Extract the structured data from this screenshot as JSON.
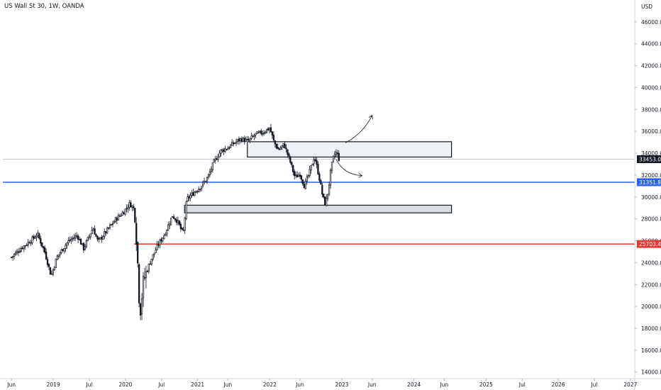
{
  "chart_data": {
    "type": "candlestick",
    "title": "US Wall St 30, 1W, OANDA",
    "currency_label": "USD",
    "y_ticks": [
      14000,
      16000,
      18000,
      20000,
      22000,
      24000,
      26000,
      28000,
      30000,
      32000,
      34000,
      36000,
      38000,
      40000,
      42000,
      44000,
      46000
    ],
    "y_tick_labels": [
      "14000.0",
      "16000.0",
      "18000.0",
      "20000.0",
      "22000.0",
      "24000.0",
      "26000.0",
      "28000.0",
      "30000.0",
      "32000.0",
      "34000.0",
      "36000.0",
      "38000.0",
      "40000.0",
      "42000.0",
      "44000.0",
      "46000.0"
    ],
    "ylim": [
      13400,
      48000
    ],
    "x_ticks": [
      {
        "t": 2018.42,
        "label": "Jun"
      },
      {
        "t": 2019.0,
        "label": "2019"
      },
      {
        "t": 2019.5,
        "label": "Jul"
      },
      {
        "t": 2020.0,
        "label": "2020"
      },
      {
        "t": 2020.5,
        "label": "Jul"
      },
      {
        "t": 2021.0,
        "label": "2021"
      },
      {
        "t": 2021.42,
        "label": "Jun"
      },
      {
        "t": 2022.0,
        "label": "2022"
      },
      {
        "t": 2022.42,
        "label": "Jun"
      },
      {
        "t": 2023.0,
        "label": "2023"
      },
      {
        "t": 2023.42,
        "label": "Jun"
      },
      {
        "t": 2024.0,
        "label": "2024"
      },
      {
        "t": 2024.42,
        "label": "Jun"
      },
      {
        "t": 2025.0,
        "label": "2025"
      },
      {
        "t": 2025.5,
        "label": "Jul"
      },
      {
        "t": 2026.0,
        "label": "2026"
      },
      {
        "t": 2026.5,
        "label": "Jul"
      },
      {
        "t": 2027.0,
        "label": "2027"
      }
    ],
    "xlim": [
      2018.3,
      2027.1
    ],
    "horizontal_lines": [
      {
        "value": 31351.8,
        "label": "31351.8",
        "color": "#2962ff",
        "from": 2018.3
      },
      {
        "value": 25703.4,
        "label": "25703.4",
        "color": "#e53935",
        "from": 2020.12
      },
      {
        "value": 33453.0,
        "label": "33453.0",
        "color": "#b2b5be",
        "from": 2018.3
      }
    ],
    "last_price": {
      "value": 33453.0,
      "label": "33453.0",
      "color": "#131722"
    },
    "zones": [
      {
        "t0": 2021.69,
        "t1": 2024.52,
        "y0": 33650,
        "y1": 35050,
        "fill": "#eef1f5"
      },
      {
        "t0": 2020.82,
        "t1": 2024.52,
        "y0": 28550,
        "y1": 29250,
        "fill": "#d9dce1"
      }
    ],
    "arrows": [
      {
        "from": [
          2023.05,
          34950
        ],
        "to": [
          2023.42,
          37450
        ]
      },
      {
        "from": [
          2022.92,
          33450
        ],
        "to": [
          2023.28,
          31950
        ]
      }
    ],
    "weekly_close_path": [
      [
        2018.42,
        24500
      ],
      [
        2018.55,
        25300
      ],
      [
        2018.7,
        26100
      ],
      [
        2018.78,
        26600
      ],
      [
        2018.88,
        25000
      ],
      [
        2018.97,
        22800
      ],
      [
        2019.05,
        24500
      ],
      [
        2019.2,
        25900
      ],
      [
        2019.33,
        26500
      ],
      [
        2019.42,
        25300
      ],
      [
        2019.55,
        27200
      ],
      [
        2019.62,
        25900
      ],
      [
        2019.75,
        27000
      ],
      [
        2019.87,
        28000
      ],
      [
        2019.97,
        28600
      ],
      [
        2020.06,
        29400
      ],
      [
        2020.12,
        28900
      ],
      [
        2020.16,
        25500
      ],
      [
        2020.2,
        19200
      ],
      [
        2020.25,
        22400
      ],
      [
        2020.35,
        24200
      ],
      [
        2020.45,
        25600
      ],
      [
        2020.55,
        26700
      ],
      [
        2020.65,
        28300
      ],
      [
        2020.72,
        27800
      ],
      [
        2020.8,
        26600
      ],
      [
        2020.85,
        29800
      ],
      [
        2020.95,
        30400
      ],
      [
        2021.05,
        31000
      ],
      [
        2021.15,
        31900
      ],
      [
        2021.22,
        33100
      ],
      [
        2021.32,
        34200
      ],
      [
        2021.42,
        34500
      ],
      [
        2021.5,
        34900
      ],
      [
        2021.6,
        35300
      ],
      [
        2021.7,
        35100
      ],
      [
        2021.8,
        35700
      ],
      [
        2021.9,
        35900
      ],
      [
        2022.0,
        36300
      ],
      [
        2022.06,
        35000
      ],
      [
        2022.12,
        34300
      ],
      [
        2022.2,
        34800
      ],
      [
        2022.28,
        33300
      ],
      [
        2022.35,
        31800
      ],
      [
        2022.42,
        32100
      ],
      [
        2022.48,
        31000
      ],
      [
        2022.55,
        32200
      ],
      [
        2022.62,
        33700
      ],
      [
        2022.68,
        32000
      ],
      [
        2022.73,
        30200
      ],
      [
        2022.77,
        29300
      ],
      [
        2022.81,
        30500
      ],
      [
        2022.85,
        32600
      ],
      [
        2022.89,
        33800
      ],
      [
        2022.93,
        34100
      ],
      [
        2022.96,
        33453
      ]
    ]
  }
}
